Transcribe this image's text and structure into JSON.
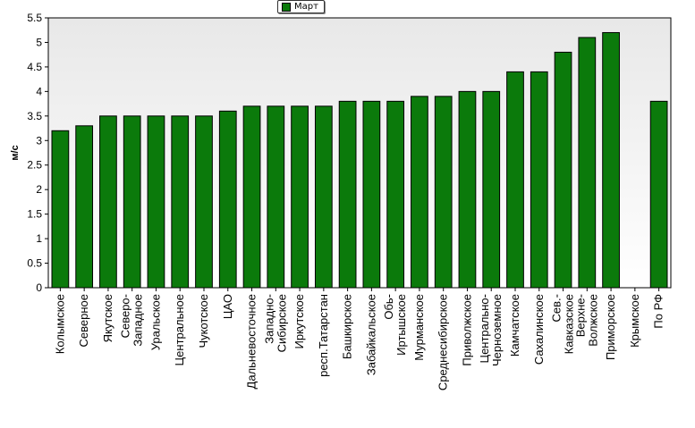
{
  "chart_data": {
    "type": "bar",
    "title": "",
    "xlabel": "",
    "ylabel": "м/с",
    "ylim": [
      0,
      5.5
    ],
    "ytick_step": 0.5,
    "yticks": [
      "0",
      "0.5",
      "1",
      "1.5",
      "2",
      "2.5",
      "3",
      "3.5",
      "4",
      "4.5",
      "5",
      "5.5"
    ],
    "grid": false,
    "legend": "top-center",
    "colors": {
      "bar": "#0b7a0b",
      "bar_edge": "#000000",
      "plot_bg_top": "#e8e8e8",
      "plot_bg_bottom": "#ffffff"
    },
    "categories": [
      "Колымское",
      "Северное",
      "Якутское",
      "Северо-\nЗападное",
      "Уральское",
      "Центральное",
      "Чукотское",
      "ЦАО",
      "Дальневосточное",
      "Западно-\nСибирское",
      "Иркутское",
      "респ.Татарстан",
      "Башкирское",
      "Забайкальское",
      "Обь-\nИртышское",
      "Мурманское",
      "Среднесибирское",
      "Приволжское",
      "Центрально-\nЧерноземное",
      "Камчатское",
      "Сахалинское",
      "Сев.-\nКавказское",
      "Верхне-\nВолжское",
      "Приморское",
      "Крымское",
      "По РФ"
    ],
    "series": [
      {
        "name": "Март",
        "values": [
          3.2,
          3.3,
          3.5,
          3.5,
          3.5,
          3.5,
          3.5,
          3.6,
          3.7,
          3.7,
          3.7,
          3.7,
          3.8,
          3.8,
          3.8,
          3.9,
          3.9,
          4.0,
          4.0,
          4.4,
          4.4,
          4.8,
          5.1,
          5.2,
          null,
          3.8
        ]
      }
    ]
  }
}
